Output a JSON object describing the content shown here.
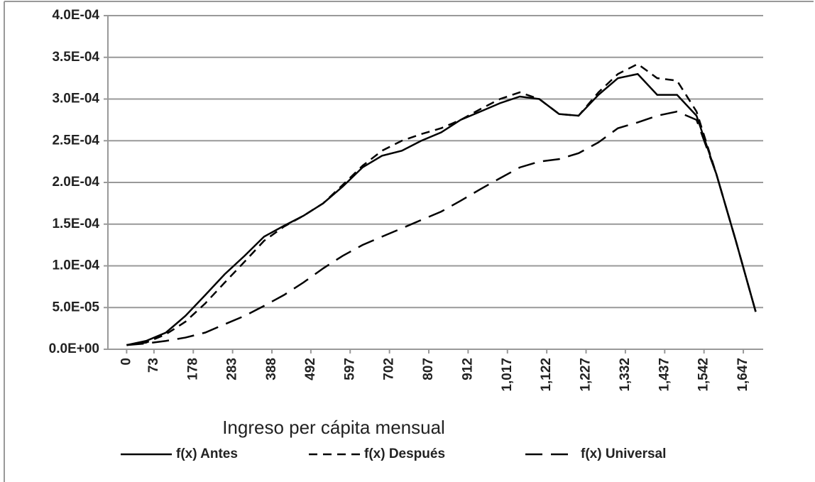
{
  "chart_data": {
    "type": "line",
    "x_label": "Ingreso per cápita mensual",
    "x": [
      0,
      52,
      105,
      157,
      210,
      262,
      315,
      367,
      420,
      472,
      525,
      577,
      630,
      682,
      735,
      787,
      840,
      892,
      945,
      997,
      1050,
      1102,
      1155,
      1207,
      1260,
      1312,
      1365,
      1417,
      1470,
      1522,
      1575,
      1627,
      1680
    ],
    "series": [
      {
        "name": "f(x) Antes",
        "color": "#000000",
        "dash": "solid",
        "values": [
          5e-06,
          1e-05,
          2e-05,
          4e-05,
          6.5e-05,
          9e-05,
          0.000112,
          0.000135,
          0.000148,
          0.00016,
          0.000175,
          0.000195,
          0.000218,
          0.000232,
          0.000238,
          0.00025,
          0.00026,
          0.000275,
          0.000285,
          0.000295,
          0.000303,
          0.0003,
          0.000282,
          0.00028,
          0.000305,
          0.000325,
          0.00033,
          0.000305,
          0.000305,
          0.00028,
          0.00021,
          0.00013,
          4.5e-05
        ]
      },
      {
        "name": "f(x) Después",
        "color": "#000000",
        "dash": "short",
        "values": [
          5e-06,
          8e-06,
          1.8e-05,
          3.3e-05,
          5.5e-05,
          8e-05,
          0.000105,
          0.00013,
          0.000147,
          0.00016,
          0.000175,
          0.000197,
          0.00022,
          0.000238,
          0.00025,
          0.000258,
          0.000265,
          0.000275,
          0.000288,
          0.0003,
          0.000308,
          0.0003,
          0.000282,
          0.00028,
          0.000308,
          0.00033,
          0.000342,
          0.000325,
          0.000322,
          0.000285,
          0.00021,
          0.00013,
          4.5e-05
        ]
      },
      {
        "name": "f(x) Universal",
        "color": "#000000",
        "dash": "long",
        "values": [
          5e-06,
          7e-06,
          1e-05,
          1.4e-05,
          2e-05,
          3e-05,
          4e-05,
          5.2e-05,
          6.5e-05,
          8e-05,
          9.7e-05,
          0.000112,
          0.000125,
          0.000135,
          0.000145,
          0.000155,
          0.000165,
          0.000178,
          0.000192,
          0.000205,
          0.000218,
          0.000225,
          0.000228,
          0.000235,
          0.000248,
          0.000265,
          0.000272,
          0.00028,
          0.000285,
          0.000275,
          0.00021,
          0.00013,
          4.5e-05
        ]
      }
    ],
    "xlim": [
      -50,
      1700
    ],
    "xticks": [
      0,
      73,
      178,
      283,
      388,
      492,
      597,
      702,
      807,
      912,
      {
        "value": 1017,
        "label": "1,017"
      },
      {
        "value": 1122,
        "label": "1,122"
      },
      {
        "value": 1227,
        "label": "1,227"
      },
      {
        "value": 1332,
        "label": "1,332"
      },
      {
        "value": 1437,
        "label": "1,437"
      },
      {
        "value": 1542,
        "label": "1,542"
      },
      {
        "value": 1647,
        "label": "1,647"
      }
    ],
    "ylim": [
      0,
      0.0004
    ],
    "yticks": [
      {
        "value": 0,
        "label": "0.0E+00"
      },
      {
        "value": 5e-05,
        "label": "5.0E-05"
      },
      {
        "value": 0.0001,
        "label": "1.0E-04"
      },
      {
        "value": 0.00015,
        "label": "1.5E-04"
      },
      {
        "value": 0.0002,
        "label": "2.0E-04"
      },
      {
        "value": 0.00025,
        "label": "2.5E-04"
      },
      {
        "value": 0.0003,
        "label": "3.0E-04"
      },
      {
        "value": 0.00035,
        "label": "3.5E-04"
      },
      {
        "value": 0.0004,
        "label": "4.0E-04"
      }
    ],
    "grid": true,
    "legend": "bottom"
  }
}
